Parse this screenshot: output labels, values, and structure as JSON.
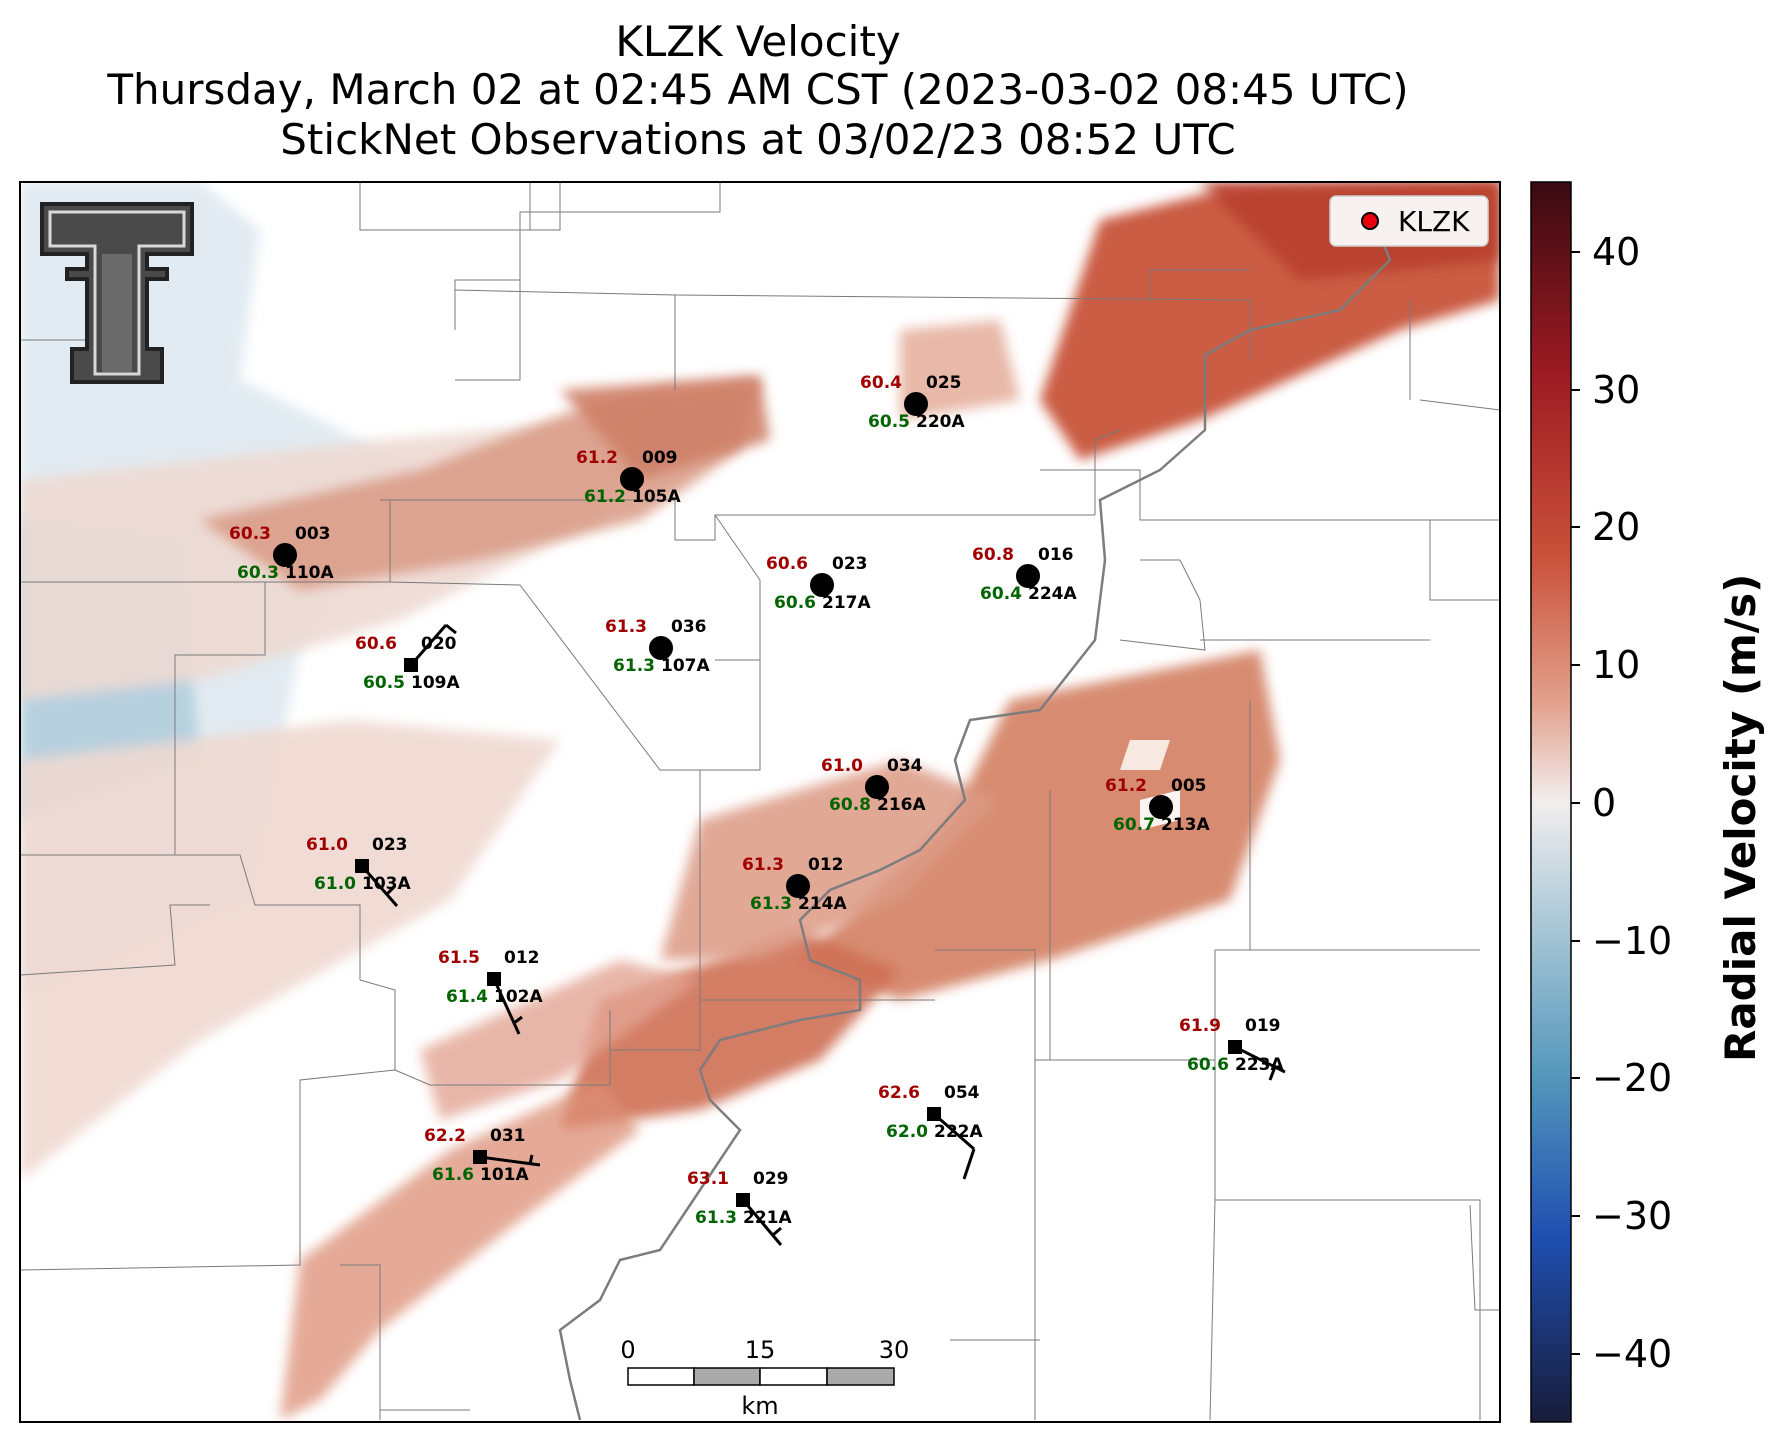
{
  "header": {
    "title": "KLZK Velocity",
    "subtitle": "Thursday, March 02 at 02:45 AM CST (2023-03-02 08:45 UTC)",
    "subtitle2": "StickNet Observations at 03/02/23 08:52 UTC"
  },
  "legend": {
    "label": "KLZK",
    "marker_color": "#e8000b"
  },
  "colorbar": {
    "label": "Radial Velocity (m/s)",
    "ticks": [
      "40",
      "30",
      "20",
      "10",
      "0",
      "−10",
      "−20",
      "−30",
      "−40"
    ],
    "range": [
      -45,
      45
    ],
    "colors": {
      "max": "#3a0a12",
      "high": "#b0202a",
      "mid_pos": "#d9775a",
      "zero": "#f2eeee",
      "mid_neg": "#6aa6c2",
      "low": "#1f3fae",
      "min": "#181c3a"
    }
  },
  "scale_bar": {
    "ticks": [
      "0",
      "15",
      "30"
    ],
    "unit": "km"
  },
  "logo": {
    "name": "double-t-logo"
  },
  "stations": [
    {
      "id": "003",
      "probe": "110A",
      "temp": "60.3",
      "dew": "60.3",
      "marker": "circle"
    },
    {
      "id": "009",
      "probe": "105A",
      "temp": "61.2",
      "dew": "61.2",
      "marker": "circle"
    },
    {
      "id": "025",
      "probe": "220A",
      "temp": "60.4",
      "dew": "60.5",
      "marker": "circle"
    },
    {
      "id": "023",
      "probe": "217A",
      "temp": "60.6",
      "dew": "60.6",
      "marker": "circle"
    },
    {
      "id": "016",
      "probe": "224A",
      "temp": "60.8",
      "dew": "60.4",
      "marker": "circle"
    },
    {
      "id": "036",
      "probe": "107A",
      "temp": "61.3",
      "dew": "61.3",
      "marker": "circle"
    },
    {
      "id": "020",
      "probe": "109A",
      "temp": "60.6",
      "dew": "60.5",
      "marker": "square"
    },
    {
      "id": "034",
      "probe": "216A",
      "temp": "61.0",
      "dew": "60.8",
      "marker": "circle"
    },
    {
      "id": "005",
      "probe": "213A",
      "temp": "61.2",
      "dew": "60.7",
      "marker": "circle"
    },
    {
      "id": "023",
      "probe": "103A",
      "temp": "61.0",
      "dew": "61.0",
      "marker": "square"
    },
    {
      "id": "012",
      "probe": "214A",
      "temp": "61.3",
      "dew": "61.3",
      "marker": "circle"
    },
    {
      "id": "012",
      "probe": "102A",
      "temp": "61.5",
      "dew": "61.4",
      "marker": "square"
    },
    {
      "id": "019",
      "probe": "223A",
      "temp": "61.9",
      "dew": "60.6",
      "marker": "square"
    },
    {
      "id": "054",
      "probe": "222A",
      "temp": "62.6",
      "dew": "62.0",
      "marker": "square"
    },
    {
      "id": "031",
      "probe": "101A",
      "temp": "62.2",
      "dew": "61.6",
      "marker": "square"
    },
    {
      "id": "029",
      "probe": "221A",
      "temp": "63.1",
      "dew": "61.3",
      "marker": "square"
    }
  ]
}
